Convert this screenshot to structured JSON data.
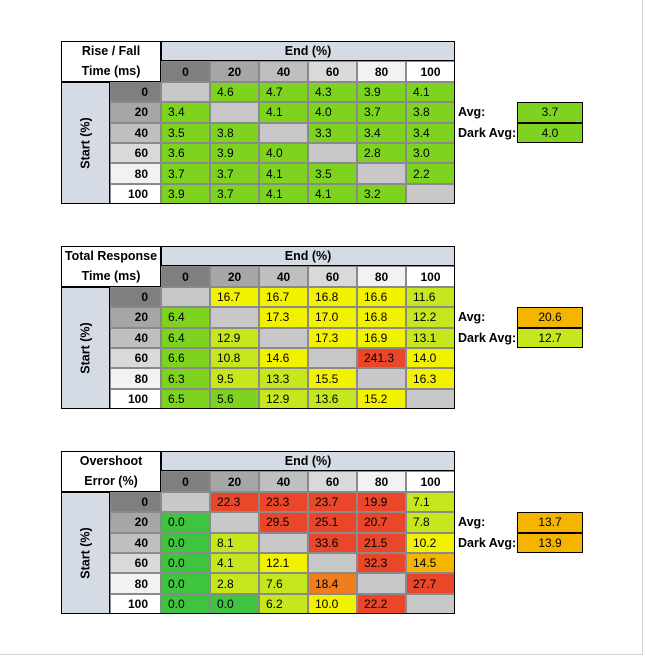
{
  "colors": {
    "header_bg": "#d5dbe5",
    "diag": "#c8c8c8",
    "green": "#7ed321",
    "lime": "#c6e61e",
    "yellow": "#f2f200",
    "amber": "#f5b400",
    "orange": "#f07e1e",
    "red": "#e9462a",
    "bright_green": "#3fc43f",
    "col_hdr_0": "#7f7f7f",
    "col_hdr_20": "#a6a6a6",
    "col_hdr_40": "#bfbfbf",
    "col_hdr_60": "#d9d9d9",
    "col_hdr_80": "#f2f2f2",
    "col_hdr_100": "#ffffff"
  },
  "chart_data": [
    {
      "type": "heatmap",
      "title_lines": [
        "Rise / Fall",
        "Time (ms)"
      ],
      "col_header": "End (%)",
      "row_header": "Start (%)",
      "columns": [
        "0",
        "20",
        "40",
        "60",
        "80",
        "100"
      ],
      "rows": [
        "0",
        "20",
        "40",
        "60",
        "80",
        "100"
      ],
      "values": [
        [
          "",
          "4.6",
          "4.7",
          "4.3",
          "3.9",
          "4.1"
        ],
        [
          "3.4",
          "",
          "4.1",
          "4.0",
          "3.7",
          "3.8"
        ],
        [
          "3.5",
          "3.8",
          "",
          "3.3",
          "3.4",
          "3.4"
        ],
        [
          "3.6",
          "3.9",
          "4.0",
          "",
          "2.8",
          "3.0"
        ],
        [
          "3.7",
          "3.7",
          "4.1",
          "3.5",
          "",
          "2.2"
        ],
        [
          "3.9",
          "3.7",
          "4.1",
          "4.1",
          "3.2",
          ""
        ]
      ],
      "cell_colors": [
        [
          "diag",
          "green",
          "green",
          "green",
          "green",
          "green"
        ],
        [
          "green",
          "diag",
          "green",
          "green",
          "green",
          "green"
        ],
        [
          "green",
          "green",
          "diag",
          "green",
          "green",
          "green"
        ],
        [
          "green",
          "green",
          "green",
          "diag",
          "green",
          "green"
        ],
        [
          "green",
          "green",
          "green",
          "green",
          "diag",
          "green"
        ],
        [
          "green",
          "green",
          "green",
          "green",
          "green",
          "diag"
        ]
      ],
      "avg_label": "Avg:",
      "avg": "3.7",
      "avg_color": "green",
      "dark_avg_label": "Dark Avg:",
      "dark_avg": "4.0",
      "dark_avg_color": "green"
    },
    {
      "type": "heatmap",
      "title_lines": [
        "Total Response",
        "Time (ms)"
      ],
      "col_header": "End (%)",
      "row_header": "Start (%)",
      "columns": [
        "0",
        "20",
        "40",
        "60",
        "80",
        "100"
      ],
      "rows": [
        "0",
        "20",
        "40",
        "60",
        "80",
        "100"
      ],
      "values": [
        [
          "",
          "16.7",
          "16.7",
          "16.8",
          "16.6",
          "11.6"
        ],
        [
          "6.4",
          "",
          "17.3",
          "17.0",
          "16.8",
          "12.2"
        ],
        [
          "6.4",
          "12.9",
          "",
          "17.3",
          "16.9",
          "13.1"
        ],
        [
          "6.6",
          "10.8",
          "14.6",
          "",
          "241.3",
          "14.0"
        ],
        [
          "6.3",
          "9.5",
          "13.3",
          "15.5",
          "",
          "16.3"
        ],
        [
          "6.5",
          "5.6",
          "12.9",
          "13.6",
          "15.2",
          ""
        ]
      ],
      "cell_colors": [
        [
          "diag",
          "yellow",
          "yellow",
          "yellow",
          "yellow",
          "lime"
        ],
        [
          "green",
          "diag",
          "yellow",
          "yellow",
          "yellow",
          "lime"
        ],
        [
          "green",
          "lime",
          "diag",
          "yellow",
          "yellow",
          "lime"
        ],
        [
          "green",
          "lime",
          "yellow",
          "diag",
          "red",
          "yellow"
        ],
        [
          "green",
          "lime",
          "lime",
          "yellow",
          "diag",
          "yellow"
        ],
        [
          "green",
          "green",
          "lime",
          "lime",
          "yellow",
          "diag"
        ]
      ],
      "avg_label": "Avg:",
      "avg": "20.6",
      "avg_color": "amber",
      "dark_avg_label": "Dark Avg:",
      "dark_avg": "12.7",
      "dark_avg_color": "lime"
    },
    {
      "type": "heatmap",
      "title_lines": [
        "Overshoot",
        "Error (%)"
      ],
      "col_header": "End (%)",
      "row_header": "Start (%)",
      "columns": [
        "0",
        "20",
        "40",
        "60",
        "80",
        "100"
      ],
      "rows": [
        "0",
        "20",
        "40",
        "60",
        "80",
        "100"
      ],
      "values": [
        [
          "",
          "22.3",
          "23.3",
          "23.7",
          "19.9",
          "7.1"
        ],
        [
          "0.0",
          "",
          "29.5",
          "25.1",
          "20.7",
          "7.8"
        ],
        [
          "0.0",
          "8.1",
          "",
          "33.6",
          "21.5",
          "10.2"
        ],
        [
          "0.0",
          "4.1",
          "12.1",
          "",
          "32.3",
          "14.5"
        ],
        [
          "0.0",
          "2.8",
          "7.6",
          "18.4",
          "",
          "27.7"
        ],
        [
          "0.0",
          "0.0",
          "6.2",
          "10.0",
          "22.2",
          ""
        ]
      ],
      "cell_colors": [
        [
          "diag",
          "red",
          "red",
          "red",
          "red",
          "lime"
        ],
        [
          "bright_green",
          "diag",
          "red",
          "red",
          "red",
          "lime"
        ],
        [
          "bright_green",
          "lime",
          "diag",
          "red",
          "red",
          "yellow"
        ],
        [
          "bright_green",
          "lime",
          "yellow",
          "diag",
          "red",
          "amber"
        ],
        [
          "bright_green",
          "lime",
          "lime",
          "orange",
          "diag",
          "red"
        ],
        [
          "bright_green",
          "bright_green",
          "lime",
          "yellow",
          "red",
          "diag"
        ]
      ],
      "avg_label": "Avg:",
      "avg": "13.7",
      "avg_color": "amber",
      "dark_avg_label": "Dark Avg:",
      "dark_avg": "13.9",
      "dark_avg_color": "amber"
    }
  ]
}
